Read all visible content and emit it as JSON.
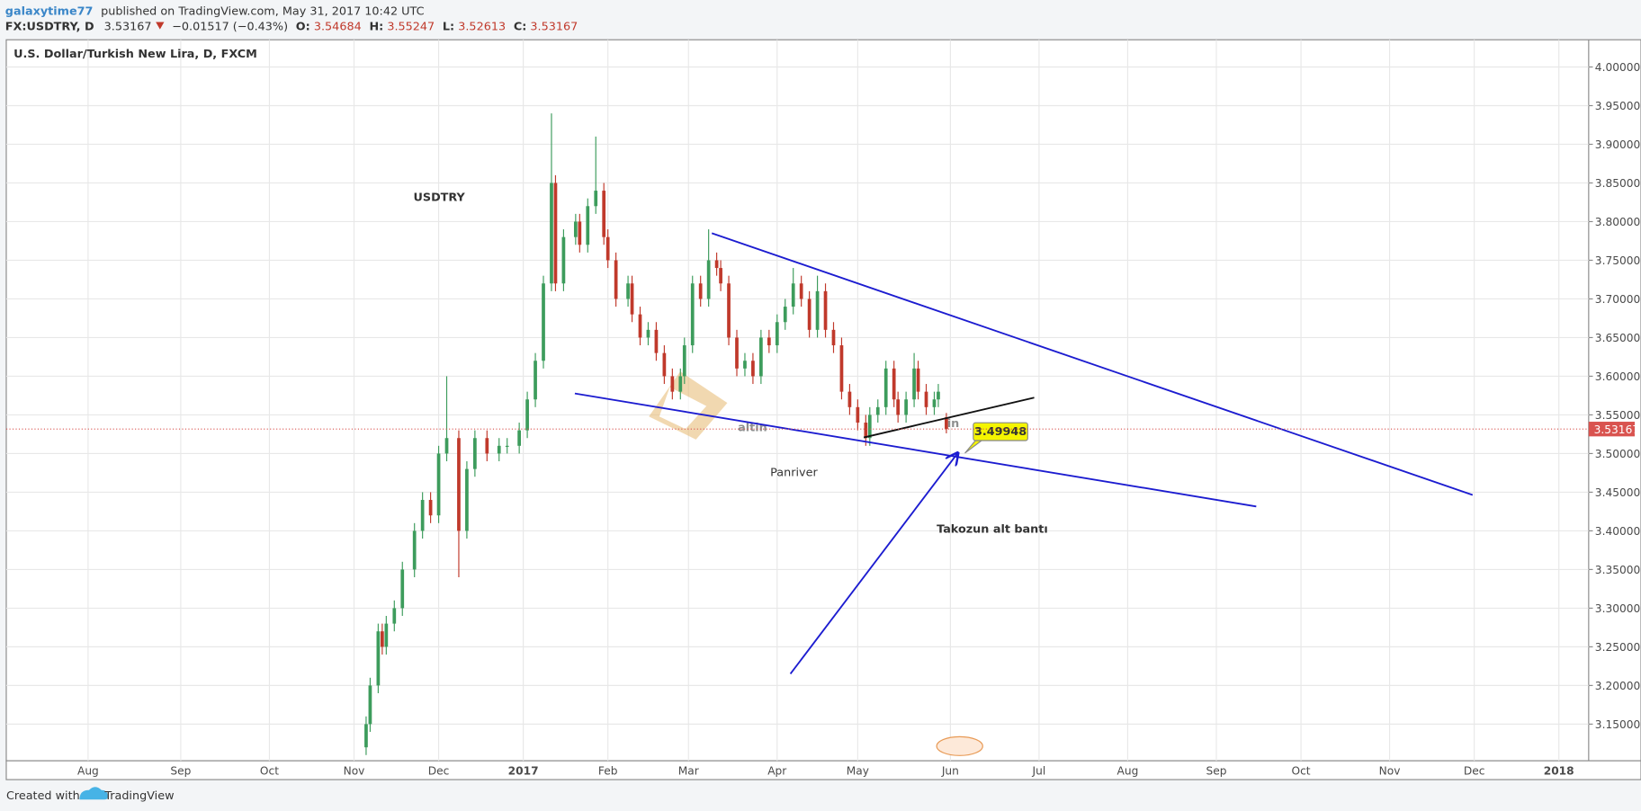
{
  "header": {
    "author": "galaxytime77",
    "published": "published on TradingView.com, May 31, 2017 10:42 UTC",
    "symbol": "FX:USDTRY, D",
    "last": 3.53167,
    "change": "−0.01517 (−0.43%)",
    "open_label": "O:",
    "high_label": "H:",
    "low_label": "L:",
    "close_label": "C:"
  },
  "chart_data": {
    "type": "candlestick",
    "title": "U.S. Dollar/Turkish New Lira, D, FXCM",
    "x": [
      69,
      70,
      72,
      73,
      74,
      76,
      78,
      81,
      83,
      85,
      87,
      89,
      92,
      94,
      96,
      99,
      102,
      104,
      107,
      109,
      111,
      113,
      115,
      116,
      118,
      121,
      122,
      124,
      126,
      128,
      129,
      131,
      134,
      135,
      137,
      139,
      141,
      143,
      145,
      147,
      148,
      150,
      152,
      154,
      156,
      157,
      159,
      161,
      163,
      165,
      167,
      169,
      171,
      173,
      175,
      177,
      179,
      181,
      183,
      185,
      187,
      189,
      191,
      193,
      194,
      196,
      198,
      200,
      201,
      203,
      205,
      206,
      208,
      210,
      211,
      213
    ],
    "open": [
      3.12,
      3.15,
      3.2,
      3.27,
      3.25,
      3.28,
      3.3,
      3.35,
      3.4,
      3.44,
      3.42,
      3.5,
      3.52,
      3.4,
      3.48,
      3.52,
      3.5,
      3.51,
      3.51,
      3.53,
      3.57,
      3.62,
      3.72,
      3.85,
      3.72,
      3.78,
      3.8,
      3.77,
      3.82,
      3.84,
      3.78,
      3.75,
      3.7,
      3.72,
      3.68,
      3.65,
      3.66,
      3.63,
      3.6,
      3.58,
      3.6,
      3.64,
      3.72,
      3.7,
      3.75,
      3.74,
      3.72,
      3.65,
      3.61,
      3.62,
      3.6,
      3.65,
      3.64,
      3.67,
      3.69,
      3.72,
      3.7,
      3.66,
      3.71,
      3.66,
      3.64,
      3.58,
      3.56,
      3.54,
      3.52,
      3.55,
      3.56,
      3.61,
      3.57,
      3.55,
      3.57,
      3.61,
      3.58,
      3.56,
      3.57,
      3.54684
    ],
    "high": [
      3.16,
      3.21,
      3.28,
      3.28,
      3.29,
      3.31,
      3.36,
      3.41,
      3.45,
      3.45,
      3.51,
      3.6,
      3.53,
      3.49,
      3.53,
      3.53,
      3.52,
      3.52,
      3.54,
      3.58,
      3.63,
      3.73,
      3.94,
      3.86,
      3.79,
      3.81,
      3.81,
      3.83,
      3.91,
      3.85,
      3.79,
      3.76,
      3.73,
      3.73,
      3.69,
      3.67,
      3.67,
      3.64,
      3.61,
      3.61,
      3.65,
      3.73,
      3.73,
      3.79,
      3.76,
      3.75,
      3.73,
      3.66,
      3.63,
      3.63,
      3.66,
      3.66,
      3.68,
      3.7,
      3.74,
      3.73,
      3.71,
      3.73,
      3.72,
      3.67,
      3.65,
      3.59,
      3.57,
      3.55,
      3.56,
      3.57,
      3.62,
      3.62,
      3.58,
      3.58,
      3.63,
      3.62,
      3.59,
      3.58,
      3.59,
      3.55247
    ],
    "low": [
      3.11,
      3.14,
      3.19,
      3.24,
      3.24,
      3.27,
      3.29,
      3.34,
      3.39,
      3.41,
      3.41,
      3.49,
      3.34,
      3.39,
      3.47,
      3.49,
      3.49,
      3.5,
      3.5,
      3.52,
      3.56,
      3.61,
      3.71,
      3.71,
      3.71,
      3.77,
      3.76,
      3.76,
      3.81,
      3.77,
      3.74,
      3.69,
      3.69,
      3.67,
      3.64,
      3.64,
      3.62,
      3.59,
      3.57,
      3.57,
      3.59,
      3.63,
      3.69,
      3.69,
      3.73,
      3.71,
      3.64,
      3.6,
      3.6,
      3.59,
      3.59,
      3.63,
      3.63,
      3.66,
      3.68,
      3.69,
      3.65,
      3.65,
      3.65,
      3.63,
      3.57,
      3.55,
      3.53,
      3.51,
      3.51,
      3.54,
      3.55,
      3.56,
      3.54,
      3.54,
      3.56,
      3.57,
      3.55,
      3.55,
      3.56,
      3.52613
    ],
    "close": [
      3.15,
      3.2,
      3.27,
      3.25,
      3.28,
      3.3,
      3.35,
      3.4,
      3.44,
      3.42,
      3.5,
      3.52,
      3.4,
      3.48,
      3.52,
      3.5,
      3.51,
      3.51,
      3.53,
      3.57,
      3.62,
      3.72,
      3.85,
      3.72,
      3.78,
      3.8,
      3.77,
      3.82,
      3.84,
      3.78,
      3.75,
      3.7,
      3.72,
      3.68,
      3.65,
      3.66,
      3.63,
      3.6,
      3.58,
      3.6,
      3.64,
      3.72,
      3.7,
      3.75,
      3.74,
      3.72,
      3.65,
      3.61,
      3.62,
      3.6,
      3.65,
      3.64,
      3.67,
      3.69,
      3.72,
      3.7,
      3.66,
      3.71,
      3.66,
      3.64,
      3.58,
      3.56,
      3.54,
      3.52,
      3.55,
      3.56,
      3.61,
      3.57,
      3.55,
      3.57,
      3.61,
      3.58,
      3.56,
      3.57,
      3.58,
      3.53167
    ],
    "up_color": "#3d9c5c",
    "down_color": "#c0392b",
    "xlim": [
      -20.3,
      372.4
    ],
    "xticks": [
      {
        "value": 0,
        "label": "Aug"
      },
      {
        "value": 23,
        "label": "Sep"
      },
      {
        "value": 45,
        "label": "Oct"
      },
      {
        "value": 66,
        "label": "Nov"
      },
      {
        "value": 87,
        "label": "Dec"
      },
      {
        "value": 108,
        "label": "2017"
      },
      {
        "value": 129,
        "label": "Feb"
      },
      {
        "value": 149,
        "label": "Mar"
      },
      {
        "value": 171,
        "label": "Apr"
      },
      {
        "value": 191,
        "label": "May"
      },
      {
        "value": 214,
        "label": "Jun"
      },
      {
        "value": 236,
        "label": "Jul"
      },
      {
        "value": 258,
        "label": "Aug"
      },
      {
        "value": 280,
        "label": "Sep"
      },
      {
        "value": 301,
        "label": "Oct"
      },
      {
        "value": 323,
        "label": "Nov"
      },
      {
        "value": 344,
        "label": "Dec"
      },
      {
        "value": 365,
        "label": "2018"
      }
    ],
    "ylim": [
      3.1026,
      4.0352
    ],
    "yticks": [
      {
        "value": 3.15,
        "label": "3.15000"
      },
      {
        "value": 3.2,
        "label": "3.20000"
      },
      {
        "value": 3.25,
        "label": "3.25000"
      },
      {
        "value": 3.3,
        "label": "3.30000"
      },
      {
        "value": 3.35,
        "label": "3.35000"
      },
      {
        "value": 3.4,
        "label": "3.40000"
      },
      {
        "value": 3.45,
        "label": "3.45000"
      },
      {
        "value": 3.5,
        "label": "3.50000"
      },
      {
        "value": 3.55,
        "label": "3.55000"
      },
      {
        "value": 3.6,
        "label": "3.60000"
      },
      {
        "value": 3.65,
        "label": "3.65000"
      },
      {
        "value": 3.7,
        "label": "3.70000"
      },
      {
        "value": 3.75,
        "label": "3.75000"
      },
      {
        "value": 3.8,
        "label": "3.80000"
      },
      {
        "value": 3.85,
        "label": "3.85000"
      },
      {
        "value": 3.9,
        "label": "3.90000"
      },
      {
        "value": 3.95,
        "label": "3.95000"
      },
      {
        "value": 4.0,
        "label": "4.00000"
      }
    ],
    "grid": true,
    "last_price": 3.53167,
    "last_price_color": "#d9534f",
    "trendlines": [
      {
        "x": [
          154.8,
          343.6
        ],
        "y": [
          3.785,
          3.4464
        ],
        "color": "#1c1cd0"
      },
      {
        "x": [
          120.8,
          289.9
        ],
        "y": [
          3.5777,
          3.4315
        ],
        "color": "#1c1cd0"
      },
      {
        "x": [
          192.5,
          234.8
        ],
        "y": [
          3.5208,
          3.5723
        ],
        "color": "#111111"
      }
    ],
    "arrow": {
      "x": [
        174.3,
        215.8
      ],
      "y": [
        3.215,
        3.5005
      ],
      "color": "#1c1cd0"
    },
    "callout": 3.49948,
    "annotations": [
      "USDTRY",
      "Takozun alt bantı"
    ],
    "watermark": [
      "altin",
      "in",
      "Panriver"
    ]
  },
  "footer": {
    "created": "Created with",
    "brand": "TradingView"
  }
}
